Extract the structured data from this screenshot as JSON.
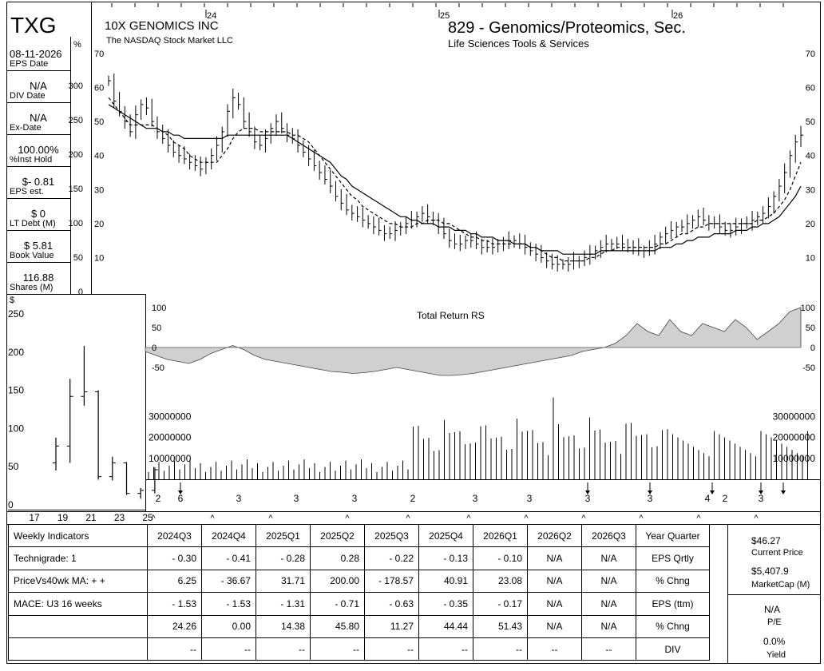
{
  "header": {
    "ticker": "TXG",
    "company": "10X GENOMICS INC",
    "exchange": "The NASDAQ Stock Market LLC",
    "industry": "829 - Genomics/Proteomics, Sec.",
    "sector": "Life Sciences Tools & Services"
  },
  "sidebar": {
    "pct_label": "%",
    "items": [
      {
        "value": "08-11-2026",
        "label": "EPS Date"
      },
      {
        "value": "N/A",
        "label": "DIV Date"
      },
      {
        "value": "N/A",
        "label": "Ex-Date"
      },
      {
        "value": "100.00%",
        "label": "%Inst Hold"
      },
      {
        "value": "$- 0.81",
        "label": "EPS est."
      },
      {
        "value": "$ 0",
        "label": "LT Debt (M)"
      },
      {
        "value": "$ 5.81",
        "label": "Book Value"
      },
      {
        "value": "116.88",
        "label": "Shares (M)"
      }
    ]
  },
  "chart_data": [
    {
      "type": "ohlc",
      "name": "price",
      "year_markers": [
        "24",
        "25",
        "26"
      ],
      "y_ticks": [
        10,
        20,
        30,
        40,
        50,
        60,
        70
      ],
      "pct_ticks": [
        0,
        50,
        100,
        150,
        200,
        250,
        300
      ],
      "ylim": [
        0,
        70
      ],
      "weekly_close": [
        62,
        56,
        53,
        50,
        47,
        52,
        55,
        54,
        50,
        47,
        45,
        43,
        41,
        40,
        39,
        38,
        37,
        36,
        38,
        40,
        43,
        47,
        53,
        57,
        55,
        50,
        47,
        44,
        43,
        45,
        48,
        50,
        48,
        46,
        45,
        43,
        41,
        39,
        37,
        35,
        33,
        31,
        28,
        26,
        24,
        23,
        22,
        21,
        20,
        19,
        18,
        17,
        17,
        18,
        19,
        20,
        21,
        22,
        23,
        22,
        21,
        19,
        17,
        15,
        14,
        14,
        15,
        15,
        14,
        13,
        13,
        13,
        14,
        14,
        15,
        15,
        14,
        13,
        12,
        11,
        10,
        9,
        8,
        8,
        8,
        8,
        9,
        9,
        10,
        11,
        12,
        13,
        14,
        14,
        14,
        14,
        13,
        13,
        12,
        12,
        13,
        14,
        16,
        17,
        18,
        19,
        19,
        20,
        21,
        22,
        21,
        20,
        20,
        19,
        18,
        18,
        19,
        20,
        20,
        21,
        22,
        23,
        25,
        28,
        31,
        35,
        40,
        44,
        46
      ],
      "ma10_close": [
        57,
        55,
        53,
        51,
        49,
        49,
        49,
        49,
        49,
        48,
        47,
        46,
        44,
        43,
        42,
        40,
        39,
        38,
        38,
        38,
        38,
        40,
        42,
        45,
        47,
        48,
        48,
        48,
        47,
        47,
        47,
        47,
        47,
        47,
        46,
        46,
        45,
        44,
        42,
        40,
        38,
        36,
        34,
        32,
        30,
        28,
        27,
        25,
        24,
        23,
        22,
        21,
        20,
        20,
        19,
        19,
        19,
        20,
        20,
        21,
        21,
        21,
        20,
        20,
        19,
        18,
        17,
        16,
        16,
        15,
        15,
        14,
        14,
        14,
        14,
        14,
        14,
        14,
        13,
        13,
        12,
        11,
        10,
        10,
        9,
        9,
        9,
        9,
        9,
        10,
        10,
        11,
        12,
        12,
        13,
        13,
        13,
        13,
        13,
        13,
        13,
        13,
        14,
        14,
        15,
        16,
        17,
        17,
        18,
        19,
        19,
        20,
        20,
        20,
        20,
        20,
        20,
        20,
        20,
        20,
        21,
        21,
        22,
        23,
        25,
        27,
        30,
        34,
        38
      ],
      "ma40_close": [
        55,
        54,
        53,
        52,
        51,
        50,
        49,
        48,
        48,
        48,
        47,
        47,
        46,
        46,
        45,
        45,
        45,
        45,
        45,
        45,
        45,
        45,
        46,
        46,
        46,
        46,
        46,
        46,
        46,
        46,
        46,
        46,
        46,
        46,
        45,
        44,
        43,
        42,
        41,
        40,
        39,
        38,
        36,
        34,
        33,
        31,
        30,
        29,
        28,
        27,
        26,
        25,
        24,
        23,
        22,
        22,
        21,
        21,
        20,
        20,
        20,
        19,
        19,
        19,
        18,
        18,
        18,
        17,
        17,
        16,
        16,
        16,
        15,
        15,
        15,
        14,
        14,
        14,
        13,
        13,
        12,
        12,
        12,
        12,
        11,
        11,
        11,
        11,
        11,
        11,
        11,
        12,
        12,
        12,
        12,
        12,
        12,
        12,
        12,
        12,
        12,
        12,
        13,
        13,
        13,
        14,
        14,
        15,
        15,
        16,
        16,
        16,
        17,
        17,
        17,
        17,
        18,
        18,
        18,
        19,
        19,
        20,
        20,
        21,
        22,
        24,
        26,
        28,
        31
      ],
      "earnings_surprise_labels": [
        "2",
        "6",
        "3",
        "3",
        "3",
        "2",
        "3",
        "3",
        "3",
        "3",
        "4",
        "2",
        "3"
      ]
    },
    {
      "type": "area",
      "name": "Total Return RS",
      "title": "Total Return RS",
      "y_ticks": [
        100,
        50,
        0,
        -50
      ],
      "ylim": [
        -70,
        110
      ],
      "values": [
        -10,
        -20,
        -30,
        -35,
        -40,
        -30,
        -15,
        -5,
        5,
        -5,
        -20,
        -30,
        -35,
        -40,
        -45,
        -50,
        -55,
        -60,
        -62,
        -65,
        -63,
        -60,
        -55,
        -50,
        -55,
        -60,
        -65,
        -70,
        -70,
        -68,
        -65,
        -60,
        -55,
        -50,
        -45,
        -40,
        -35,
        -30,
        -25,
        -20,
        -10,
        -5,
        0,
        10,
        30,
        60,
        40,
        30,
        70,
        40,
        30,
        60,
        50,
        40,
        70,
        50,
        20,
        40,
        60,
        90,
        100
      ]
    },
    {
      "type": "bar",
      "name": "volume",
      "y_ticks": [
        10000000,
        20000000,
        30000000
      ],
      "ylim": [
        0,
        40000000
      ]
    },
    {
      "type": "ohlc",
      "name": "annual",
      "y_label": "$",
      "y_ticks": [
        0,
        50,
        100,
        150,
        200,
        250
      ],
      "categories": [
        "17",
        "19",
        "21",
        "23",
        "25"
      ],
      "bars": [
        {
          "year": 2019,
          "open": 55,
          "high": 88,
          "low": 45,
          "close": 77
        },
        {
          "year": 2020,
          "open": 77,
          "high": 165,
          "low": 55,
          "close": 142
        },
        {
          "year": 2021,
          "open": 142,
          "high": 208,
          "low": 130,
          "close": 148
        },
        {
          "year": 2022,
          "open": 148,
          "high": 150,
          "low": 33,
          "close": 37
        },
        {
          "year": 2023,
          "open": 37,
          "high": 63,
          "low": 32,
          "close": 55
        },
        {
          "year": 2024,
          "open": 55,
          "high": 56,
          "low": 13,
          "close": 15
        },
        {
          "year": 2025,
          "open": 15,
          "high": 22,
          "low": 8,
          "close": 19
        },
        {
          "year": 2026,
          "open": 19,
          "high": 49,
          "low": 15,
          "close": 46
        }
      ]
    }
  ],
  "table": {
    "header": [
      "Weekly Indicators",
      "2024Q3",
      "2024Q4",
      "2025Q1",
      "2025Q2",
      "2025Q3",
      "2025Q4",
      "2026Q1",
      "2026Q2",
      "2026Q3",
      "Year Quarter"
    ],
    "rows": [
      [
        "Technigrade: 1",
        "- 0.30",
        "- 0.41",
        "- 0.28",
        "0.28",
        "- 0.22",
        "- 0.13",
        "- 0.10",
        "N/A",
        "N/A",
        "EPS Qrtly"
      ],
      [
        "PriceVs40wk MA:  + +",
        "6.25",
        "- 36.67",
        "31.71",
        "200.00",
        "- 178.57",
        "40.91",
        "23.08",
        "N/A",
        "N/A",
        "% Chng"
      ],
      [
        "MACE: U3  16 weeks",
        "- 1.53",
        "- 1.53",
        "- 1.31",
        "- 0.71",
        "- 0.63",
        "- 0.35",
        "- 0.17",
        "N/A",
        "N/A",
        "EPS (ttm)"
      ],
      [
        "",
        "24.26",
        "0.00",
        "14.38",
        "45.80",
        "11.27",
        "44.44",
        "51.43",
        "N/A",
        "N/A",
        "% Chng"
      ],
      [
        "",
        "--",
        "--",
        "--",
        "--",
        "--",
        "--",
        "--",
        "--",
        "--",
        "DIV"
      ]
    ],
    "right_panel": {
      "price": "$46.27",
      "price_label": "Current Price",
      "mcap": "$5,407.9",
      "mcap_label": "MarketCap (M)",
      "pe": "N/A",
      "pe_label": "P/E",
      "yield": "0.0%",
      "yield_label": "Yield"
    }
  }
}
